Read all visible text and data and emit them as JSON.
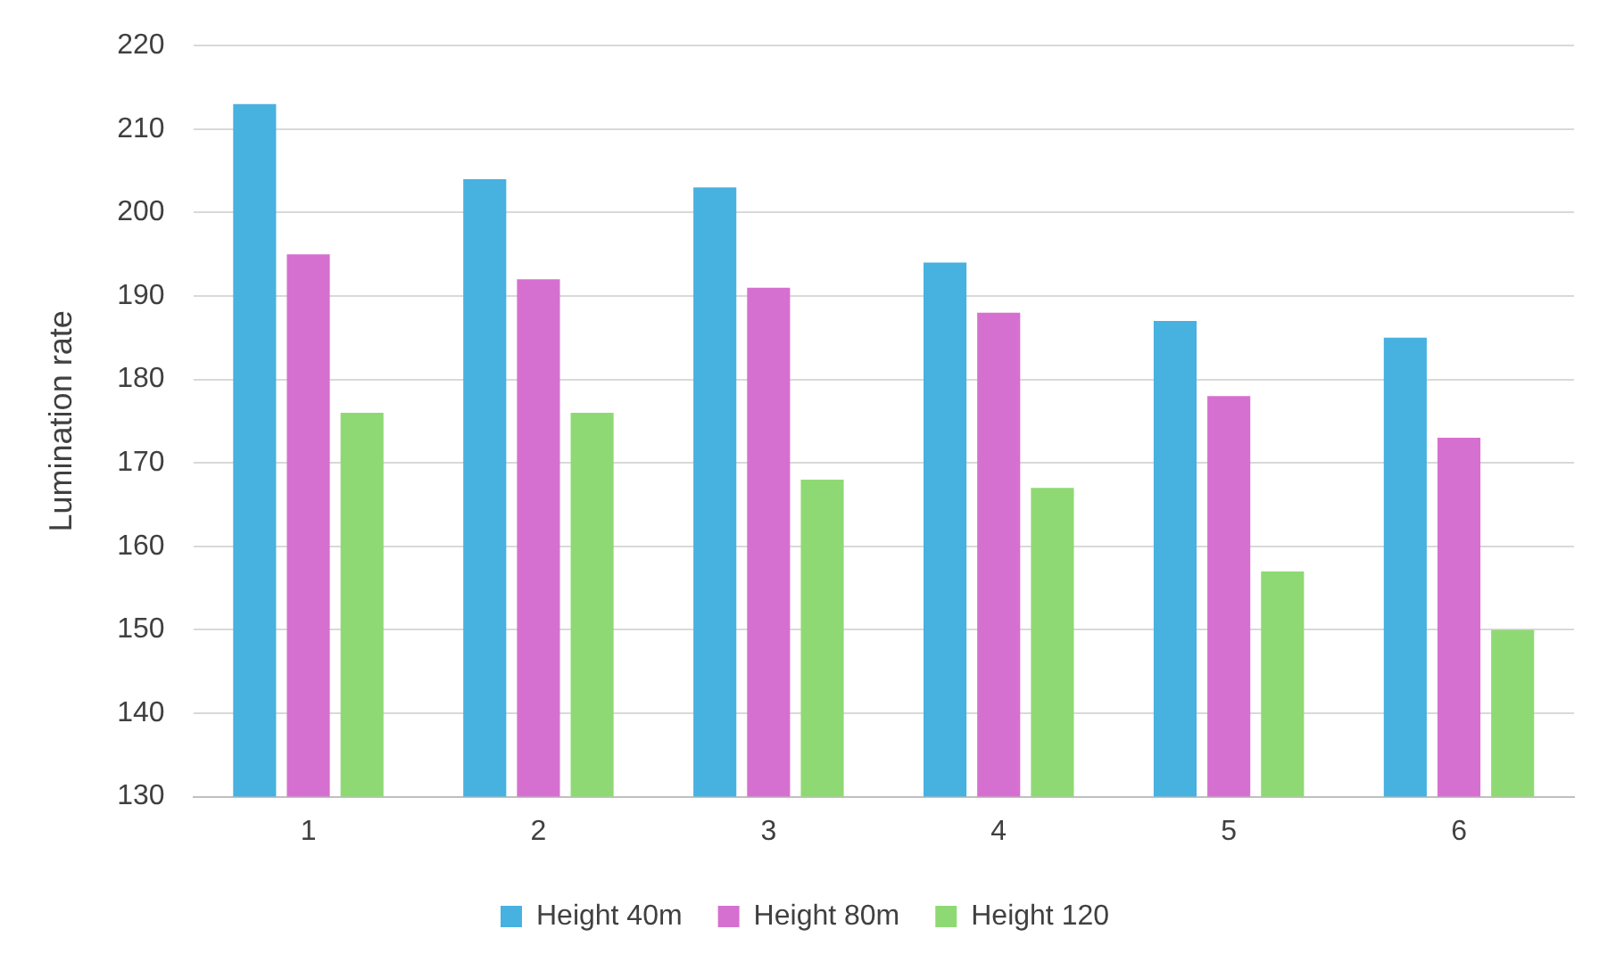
{
  "chart_data": {
    "type": "bar",
    "ylabel": "Lumination rate",
    "categories": [
      "1",
      "2",
      "3",
      "4",
      "5",
      "6"
    ],
    "series": [
      {
        "name": "Height 40m",
        "color": "#47b1e0",
        "values": [
          213,
          204,
          203,
          194,
          187,
          185
        ]
      },
      {
        "name": "Height 80m",
        "color": "#d670d0",
        "values": [
          195,
          192,
          191,
          188,
          178,
          173
        ]
      },
      {
        "name": "Height 120",
        "color": "#8fd974",
        "values": [
          176,
          176,
          168,
          167,
          157,
          150
        ]
      }
    ],
    "ylim": [
      130,
      220
    ],
    "yticks": [
      130,
      140,
      150,
      160,
      170,
      180,
      190,
      200,
      210,
      220
    ],
    "grid": "y",
    "legend": "bottom"
  }
}
